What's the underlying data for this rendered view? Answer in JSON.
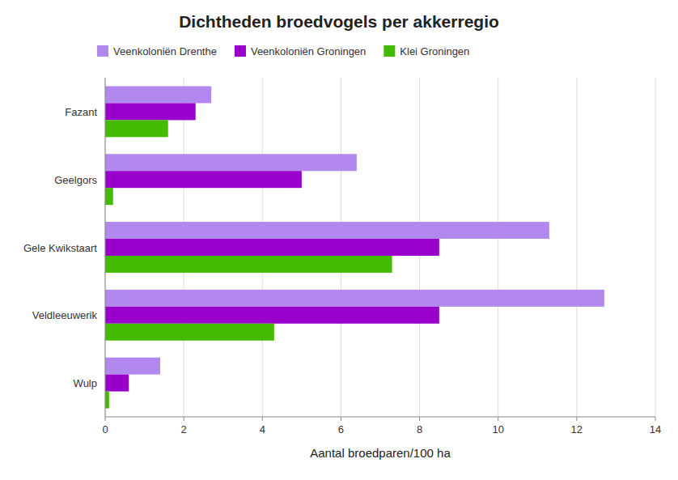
{
  "chart_data": {
    "type": "bar",
    "orientation": "horizontal",
    "title": "Dichtheden broedvogels per akkerregio",
    "xlabel": "Aantal broedparen/100 ha",
    "categories": [
      "Wulp",
      "Veldleeuwerik",
      "Gele Kwikstaart",
      "Geelgors",
      "Fazant"
    ],
    "series": [
      {
        "name": "Veenkoloniën Drenthe",
        "color": "#b088ee",
        "values": [
          1.4,
          12.7,
          11.3,
          6.4,
          2.7
        ]
      },
      {
        "name": "Veenkoloniën Groningen",
        "color": "#9900cc",
        "values": [
          0.6,
          8.5,
          8.5,
          5.0,
          2.3
        ]
      },
      {
        "name": "Klei Groningen",
        "color": "#44bb00",
        "values": [
          0.1,
          4.3,
          7.3,
          0.2,
          1.6
        ]
      }
    ],
    "xlim": [
      0,
      14
    ],
    "xticks": [
      0,
      2,
      4,
      6,
      8,
      10,
      12,
      14
    ],
    "grid": true,
    "legend": "top"
  }
}
